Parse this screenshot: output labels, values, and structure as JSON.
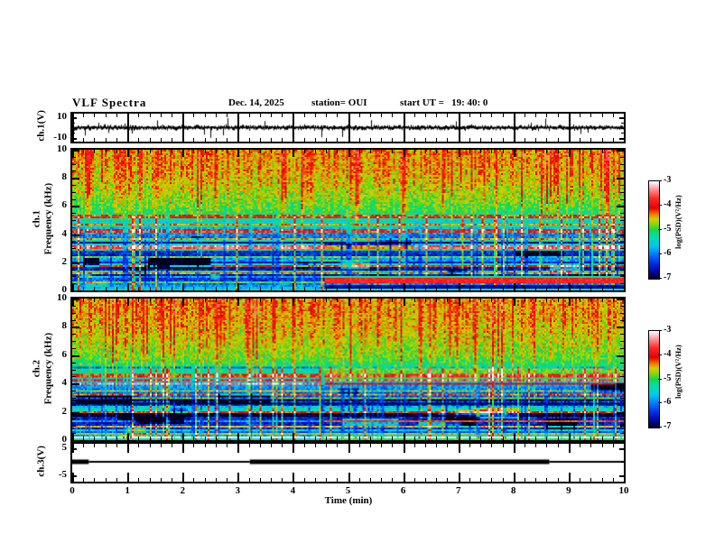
{
  "header": {
    "title": "VLF Spectra",
    "date": "Dec. 14, 2025",
    "station": "station= OUI",
    "start_ut": "start UT =   19: 40: 0"
  },
  "xaxis": {
    "label": "Time (min)",
    "range": [
      0,
      10
    ],
    "major_ticks": [
      0,
      1,
      2,
      3,
      4,
      5,
      6,
      7,
      8,
      9,
      10
    ],
    "minor_step": 0.2
  },
  "panels": {
    "ch1_wave": {
      "ylabel": "ch.1(V)",
      "ytick_labels": [
        "10",
        "-10"
      ],
      "ytick_values": [
        10,
        -10
      ]
    },
    "spec1": {
      "ylabel_lines": [
        "ch.1",
        "Frequency (kHz)"
      ],
      "ytick_values": [
        0,
        2,
        4,
        6,
        8,
        10
      ],
      "yminor_step": 0.5,
      "ylim": [
        0,
        10
      ]
    },
    "spec2": {
      "ylabel_lines": [
        "ch.2",
        "Frequency (kHz)"
      ],
      "ytick_values": [
        0,
        2,
        4,
        6,
        8,
        10
      ],
      "yminor_step": 0.5,
      "ylim": [
        0,
        10
      ]
    },
    "ch3": {
      "ylabel": "ch.3(V)",
      "ytick_labels": [
        "5",
        "-5"
      ],
      "ytick_values": [
        5,
        -5
      ]
    }
  },
  "colorbar": {
    "label": "log(PSD)(V²/Hz)",
    "tick_values": [
      -3,
      -4,
      -5,
      -6,
      -7
    ],
    "range": [
      -7,
      -3
    ],
    "stops": [
      {
        "v": -3.0,
        "c": "#ffffff"
      },
      {
        "v": -3.15,
        "c": "#ffd0da"
      },
      {
        "v": -3.4,
        "c": "#ff8080"
      },
      {
        "v": -3.7,
        "c": "#ff2828"
      },
      {
        "v": -4.1,
        "c": "#e80000"
      },
      {
        "v": -4.35,
        "c": "#f07800"
      },
      {
        "v": -4.55,
        "c": "#d8cc00"
      },
      {
        "v": -4.75,
        "c": "#8cd800"
      },
      {
        "v": -5.0,
        "c": "#14d850"
      },
      {
        "v": -5.3,
        "c": "#00ddb0"
      },
      {
        "v": -5.65,
        "c": "#00c8f0"
      },
      {
        "v": -6.0,
        "c": "#0078ff"
      },
      {
        "v": -6.35,
        "c": "#0030e8"
      },
      {
        "v": -6.7,
        "c": "#0008a0"
      },
      {
        "v": -7.0,
        "c": "#000020"
      }
    ]
  },
  "chart_data": [
    {
      "id": "ch1_waveform",
      "type": "line",
      "ylabel": "ch.1(V)",
      "xlabel": "Time (min)",
      "xlim": [
        0,
        10
      ],
      "ylim_labeled": [
        -10,
        10
      ],
      "description": "Broadband noise waveform centered on 0 V, typical amplitude about ±2 V, with intermittent impulsive spikes reaching about ±10 V across the 10-minute record."
    },
    {
      "id": "ch1_spectrogram",
      "type": "heatmap",
      "ylabel": "ch.1 Frequency (kHz)",
      "xlabel": "Time (min)",
      "xlim": [
        0,
        10
      ],
      "ylim": [
        0,
        10
      ],
      "zlabel": "log(PSD)(V²/Hz)",
      "zlim": [
        -7,
        -3
      ],
      "transition_time_min": 4.55,
      "features_after_transition": [
        {
          "type": "hband",
          "khz": [
            0.55,
            0.95
          ],
          "value": -3.75
        },
        {
          "type": "hband",
          "khz": [
            0.15,
            0.5
          ],
          "value": -6.7
        },
        {
          "type": "hline",
          "khz": 1.05,
          "value": -5.2
        },
        {
          "type": "hband",
          "khz": [
            0,
            0.15
          ],
          "value": -5.3
        }
      ],
      "description": "Spectrogram: strong PSD (yellow-green ~ -4.5) above ~5 kHz with dense red vertical impulsive streaks (~ -3.7); weak PSD (blue/black ~ -6.5) below ~4 kHz crossed by narrow cyan/green horizontal lines; after ~4.6 min a strong red band appears near 0.6-0.9 kHz with a dark band beneath it."
    },
    {
      "id": "ch2_spectrogram",
      "type": "heatmap",
      "ylabel": "ch.2 Frequency (kHz)",
      "xlabel": "Time (min)",
      "xlim": [
        0,
        10
      ],
      "ylim": [
        0,
        10
      ],
      "zlabel": "log(PSD)(V²/Hz)",
      "zlim": [
        -7,
        -3
      ],
      "transition_time_min": 4.55,
      "features_after_transition": [
        {
          "type": "hline",
          "khz": 4.05,
          "value": -4.1
        },
        {
          "type": "hline",
          "khz": 1.35,
          "value": -4.25
        },
        {
          "type": "boost",
          "khz": [
            4.3,
            5.3
          ],
          "add": 0.45
        },
        {
          "type": "boost",
          "khz": [
            0,
            0.4
          ],
          "add": 0.3
        }
      ],
      "description": "Spectrogram similar to ch.1: yellow-green above ~4.5 kHz with red vertical streaks; blue/dark below with cyan horizontal lines; after ~4.6 min narrow red-brown horizontal lines appear near 4 kHz and 1.3 kHz and a brighter cyan band near 4.3-5.3 kHz."
    },
    {
      "id": "ch3_level",
      "type": "line",
      "ylabel": "ch.3(V)",
      "xlabel": "Time (min)",
      "xlim": [
        0,
        10
      ],
      "ylim_labeled": [
        -5,
        5
      ],
      "value_v": 0,
      "segments": [
        {
          "t": [
            0,
            0.3
          ],
          "style": "thick"
        },
        {
          "t": [
            0.3,
            3.22
          ],
          "style": "thin"
        },
        {
          "t": [
            3.22,
            8.65
          ],
          "style": "thick"
        },
        {
          "t": [
            8.65,
            10
          ],
          "style": "thin"
        }
      ],
      "description": "Constant level near 0 V; the trace is drawn thick from 0-0.3 min and from 3.22-8.65 min, thin elsewhere."
    }
  ]
}
